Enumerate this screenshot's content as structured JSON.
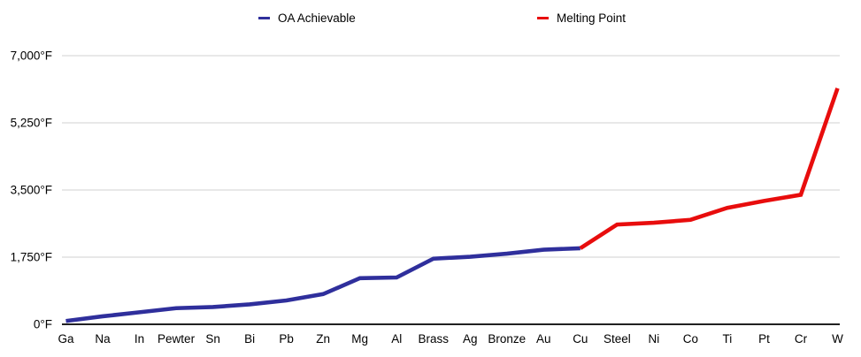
{
  "legend": {
    "items": [
      {
        "label": "OA Achievable",
        "color": "#2f2f9c"
      },
      {
        "label": "Melting Point",
        "color": "#e80d0d"
      }
    ]
  },
  "chart_data": {
    "type": "line",
    "title": "",
    "xlabel": "",
    "ylabel": "",
    "unit": "°F",
    "categories": [
      "Ga",
      "Na",
      "In",
      "Pewter",
      "Sn",
      "Bi",
      "Pb",
      "Zn",
      "Mg",
      "Al",
      "Brass",
      "Ag",
      "Bronze",
      "Au",
      "Cu",
      "Steel",
      "Ni",
      "Co",
      "Ti",
      "Pt",
      "Cr",
      "W"
    ],
    "series": [
      {
        "name": "OA Achievable",
        "color": "#2f2f9c",
        "values": [
          86,
          208,
          314,
          420,
          450,
          520,
          621,
          787,
          1202,
          1220,
          1710,
          1761,
          1841,
          1945,
          1981,
          null,
          null,
          null,
          null,
          null,
          null,
          null
        ]
      },
      {
        "name": "Melting Point",
        "color": "#e80d0d",
        "values": [
          null,
          null,
          null,
          null,
          null,
          null,
          null,
          null,
          null,
          null,
          null,
          null,
          null,
          null,
          1981,
          2600,
          2646,
          2723,
          3034,
          3214,
          3375,
          6150
        ]
      }
    ],
    "ylim": [
      0,
      7000
    ],
    "y_ticks": [
      {
        "value": 0,
        "label": "0°F"
      },
      {
        "value": 1750,
        "label": "1,750°F"
      },
      {
        "value": 3500,
        "label": "3,500°F"
      },
      {
        "value": 5250,
        "label": "5,250°F"
      },
      {
        "value": 7000,
        "label": "7,000°F"
      }
    ],
    "grid": true,
    "legend_position": "top"
  }
}
